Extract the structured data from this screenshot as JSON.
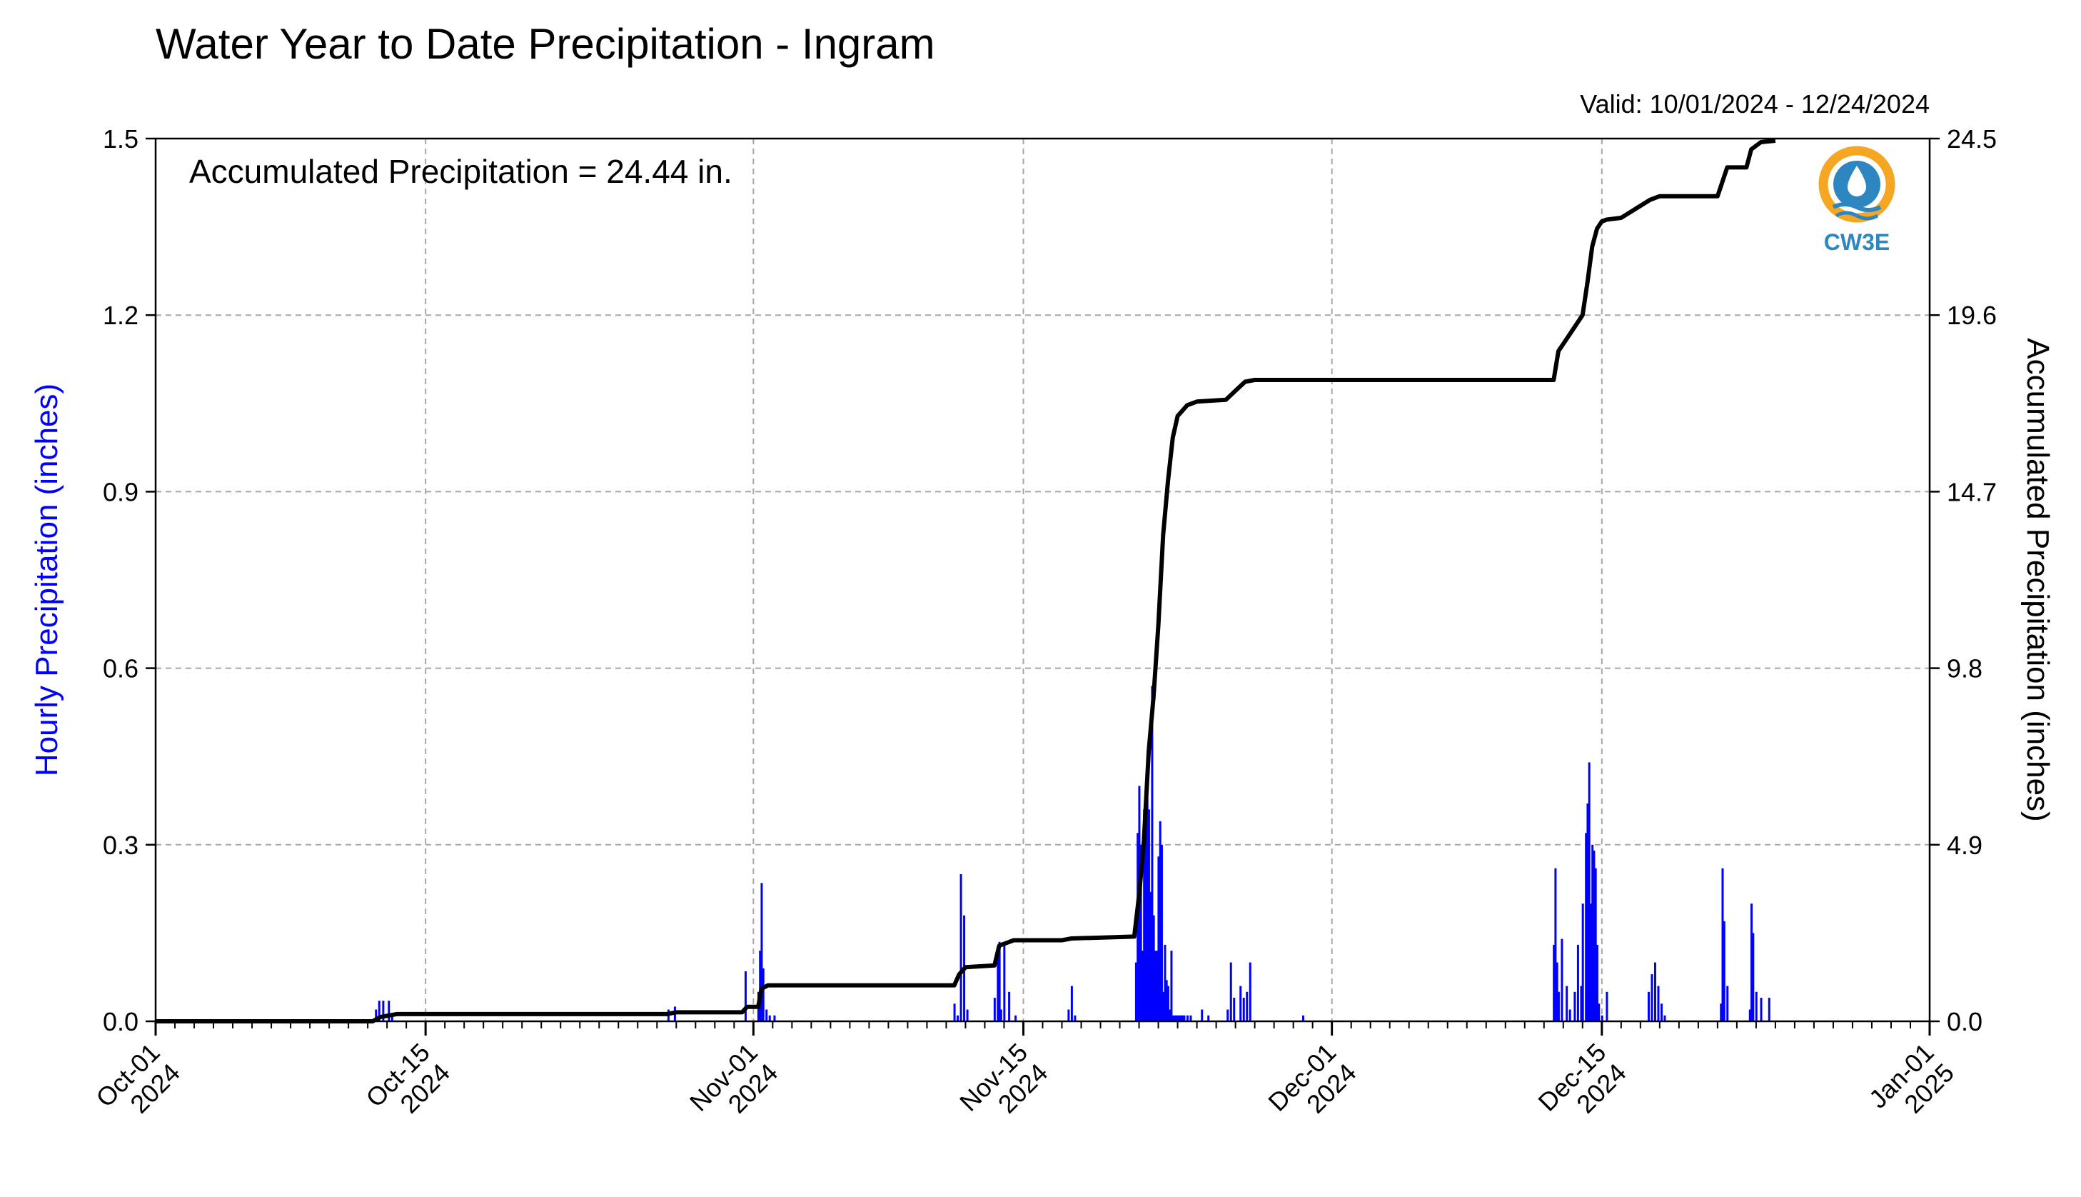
{
  "colors": {
    "bars": "#0000ff",
    "cumulative_line": "#000000",
    "grid": "#a6a6a6",
    "left_axis_label": "#0000ff",
    "logo_orange": "#f5a623",
    "logo_blue": "#2e86c1"
  },
  "logo": {
    "text": "CW3E",
    "icon": "water-drop-sun-logo"
  },
  "chart_data": {
    "type": "bar",
    "title": "Water Year to Date Precipitation - Ingram",
    "subtitle": "Valid: 10/01/2024 - 12/24/2024",
    "annotation": "Accumulated Precipitation = 24.44 in.",
    "ylabel": "Hourly Precipitation (inches)",
    "y2label": "Accumulated Precipitation (inches)",
    "grid": true,
    "x_axis": {
      "type": "date",
      "range": [
        "2024-10-01",
        "2025-01-01"
      ],
      "major_ticks": [
        {
          "date": "2024-10-01",
          "label": [
            "Oct-01",
            "2024"
          ]
        },
        {
          "date": "2024-10-15",
          "label": [
            "Oct-15",
            "2024"
          ]
        },
        {
          "date": "2024-11-01",
          "label": [
            "Nov-01",
            "2024"
          ]
        },
        {
          "date": "2024-11-15",
          "label": [
            "Nov-15",
            "2024"
          ]
        },
        {
          "date": "2024-12-01",
          "label": [
            "Dec-01",
            "2024"
          ]
        },
        {
          "date": "2024-12-15",
          "label": [
            "Dec-15",
            "2024"
          ]
        },
        {
          "date": "2025-01-01",
          "label": [
            "Jan-01",
            "2025"
          ]
        }
      ]
    },
    "y_axis": {
      "range": [
        0,
        1.5
      ],
      "ticks": [
        "0.0",
        "0.3",
        "0.6",
        "0.9",
        "1.2",
        "1.5"
      ]
    },
    "y2_axis": {
      "range": [
        0,
        24.5
      ],
      "ticks": [
        "0.0",
        "4.9",
        "9.8",
        "14.7",
        "19.6",
        "24.5"
      ]
    },
    "series": [
      {
        "type": "bar",
        "axis": "left",
        "x": [
          "2024-10-12T10:00",
          "2024-10-12T14:00",
          "2024-10-12T19:00",
          "2024-10-13T02:00",
          "2024-10-13T06:00",
          "2024-10-27T14:00",
          "2024-10-27T22:00",
          "2024-10-31T14:00",
          "2024-11-01T06:00",
          "2024-11-01T08:00",
          "2024-11-01T10:00",
          "2024-11-01T12:00",
          "2024-11-01T16:00",
          "2024-11-01T20:00",
          "2024-11-02T02:00",
          "2024-11-11T10:00",
          "2024-11-11T14:00",
          "2024-11-11T18:00",
          "2024-11-11T22:00",
          "2024-11-12T02:00",
          "2024-11-13T12:00",
          "2024-11-13T16:00",
          "2024-11-13T18:00",
          "2024-11-13T20:00",
          "2024-11-14T00:00",
          "2024-11-14T06:00",
          "2024-11-14T14:00",
          "2024-11-17T08:00",
          "2024-11-17T12:00",
          "2024-11-17T16:00",
          "2024-11-20T20:00",
          "2024-11-20T22:00",
          "2024-11-21T00:00",
          "2024-11-21T02:00",
          "2024-11-21T04:00",
          "2024-11-21T06:00",
          "2024-11-21T08:00",
          "2024-11-21T10:00",
          "2024-11-21T12:00",
          "2024-11-21T14:00",
          "2024-11-21T16:00",
          "2024-11-21T18:00",
          "2024-11-21T20:00",
          "2024-11-21T22:00",
          "2024-11-22T00:00",
          "2024-11-22T02:00",
          "2024-11-22T04:00",
          "2024-11-22T06:00",
          "2024-11-22T08:00",
          "2024-11-22T10:00",
          "2024-11-22T12:00",
          "2024-11-22T14:00",
          "2024-11-22T16:00",
          "2024-11-22T18:00",
          "2024-11-22T20:00",
          "2024-11-22T22:00",
          "2024-11-23T00:00",
          "2024-11-23T02:00",
          "2024-11-23T04:00",
          "2024-11-23T06:00",
          "2024-11-23T08:00",
          "2024-11-23T12:00",
          "2024-11-23T16:00",
          "2024-11-24T06:00",
          "2024-11-24T14:00",
          "2024-11-25T14:00",
          "2024-11-25T18:00",
          "2024-11-25T22:00",
          "2024-11-26T06:00",
          "2024-11-26T10:00",
          "2024-11-26T14:00",
          "2024-11-26T18:00",
          "2024-11-29T12:00",
          "2024-12-12T12:00",
          "2024-12-12T14:00",
          "2024-12-12T16:00",
          "2024-12-12T18:00",
          "2024-12-12T22:00",
          "2024-12-13T04:00",
          "2024-12-13T08:00",
          "2024-12-13T14:00",
          "2024-12-13T18:00",
          "2024-12-13T22:00",
          "2024-12-14T00:00",
          "2024-12-14T04:00",
          "2024-12-14T06:00",
          "2024-12-14T08:00",
          "2024-12-14T10:00",
          "2024-12-14T12:00",
          "2024-12-14T14:00",
          "2024-12-14T16:00",
          "2024-12-14T18:00",
          "2024-12-14T20:00",
          "2024-12-15T00:00",
          "2024-12-15T06:00",
          "2024-12-17T10:00",
          "2024-12-17T14:00",
          "2024-12-17T18:00",
          "2024-12-17T22:00",
          "2024-12-18T02:00",
          "2024-12-18T06:00",
          "2024-12-21T04:00",
          "2024-12-21T06:00",
          "2024-12-21T08:00",
          "2024-12-21T12:00",
          "2024-12-22T16:00",
          "2024-12-22T18:00",
          "2024-12-22T20:00",
          "2024-12-23T00:00",
          "2024-12-23T06:00",
          "2024-12-23T16:00"
        ],
        "values": [
          0.02,
          0.035,
          0.035,
          0.035,
          0.01,
          0.02,
          0.025,
          0.085,
          0.05,
          0.12,
          0.235,
          0.09,
          0.02,
          0.01,
          0.01,
          0.03,
          0.01,
          0.25,
          0.18,
          0.02,
          0.04,
          0.12,
          0.135,
          0.02,
          0.13,
          0.05,
          0.01,
          0.02,
          0.06,
          0.01,
          0.1,
          0.32,
          0.4,
          0.3,
          0.12,
          0.36,
          0.32,
          0.38,
          0.36,
          0.22,
          0.57,
          0.18,
          0.12,
          0.12,
          0.28,
          0.34,
          0.3,
          0.05,
          0.13,
          0.07,
          0.06,
          0.02,
          0.12,
          0.01,
          0.01,
          0.01,
          0.01,
          0.01,
          0.01,
          0.01,
          0.01,
          0.01,
          0.01,
          0.02,
          0.01,
          0.02,
          0.1,
          0.04,
          0.06,
          0.04,
          0.05,
          0.1,
          0.01,
          0.13,
          0.26,
          0.1,
          0.05,
          0.14,
          0.06,
          0.02,
          0.05,
          0.13,
          0.06,
          0.2,
          0.32,
          0.37,
          0.44,
          0.2,
          0.3,
          0.29,
          0.26,
          0.13,
          0.03,
          0.01,
          0.05,
          0.05,
          0.08,
          0.1,
          0.06,
          0.03,
          0.01,
          0.03,
          0.26,
          0.17,
          0.06,
          0.02,
          0.2,
          0.15,
          0.05,
          0.04,
          0.04
        ]
      },
      {
        "type": "line",
        "axis": "right",
        "x": [
          "2024-10-01T00:00",
          "2024-10-12T06:00",
          "2024-10-12T16:00",
          "2024-10-13T12:00",
          "2024-10-27T12:00",
          "2024-10-28T00:00",
          "2024-10-31T10:00",
          "2024-10-31T16:00",
          "2024-11-01T06:00",
          "2024-11-01T10:00",
          "2024-11-01T18:00",
          "2024-11-11T10:00",
          "2024-11-11T16:00",
          "2024-11-12T00:00",
          "2024-11-13T12:00",
          "2024-11-13T18:00",
          "2024-11-14T00:00",
          "2024-11-14T12:00",
          "2024-11-17T00:00",
          "2024-11-17T12:00",
          "2024-11-20T18:00",
          "2024-11-21T00:00",
          "2024-11-21T06:00",
          "2024-11-21T12:00",
          "2024-11-21T18:00",
          "2024-11-22T00:00",
          "2024-11-22T06:00",
          "2024-11-22T12:00",
          "2024-11-22T18:00",
          "2024-11-23T00:00",
          "2024-11-23T12:00",
          "2024-11-24T00:00",
          "2024-11-25T12:00",
          "2024-11-26T00:00",
          "2024-11-26T12:00",
          "2024-11-27T00:00",
          "2024-12-12T12:00",
          "2024-12-12T18:00",
          "2024-12-13T00:00",
          "2024-12-13T12:00",
          "2024-12-14T00:00",
          "2024-12-14T06:00",
          "2024-12-14T12:00",
          "2024-12-14T18:00",
          "2024-12-15T00:00",
          "2024-12-15T06:00",
          "2024-12-16T00:00",
          "2024-12-17T12:00",
          "2024-12-18T00:00",
          "2024-12-21T00:00",
          "2024-12-21T12:00",
          "2024-12-22T12:00",
          "2024-12-22T18:00",
          "2024-12-23T06:00",
          "2024-12-24T00:00"
        ],
        "values": [
          0.0,
          0.0,
          0.12,
          0.2,
          0.2,
          0.25,
          0.25,
          0.4,
          0.4,
          0.9,
          1.0,
          1.0,
          1.3,
          1.5,
          1.55,
          2.1,
          2.15,
          2.25,
          2.25,
          2.3,
          2.35,
          3.5,
          5.0,
          7.5,
          9.0,
          11.0,
          13.5,
          15.0,
          16.2,
          16.8,
          17.1,
          17.2,
          17.25,
          17.5,
          17.75,
          17.8,
          17.8,
          18.6,
          18.8,
          19.2,
          19.6,
          20.5,
          21.5,
          22.0,
          22.2,
          22.25,
          22.3,
          22.8,
          22.9,
          22.9,
          23.7,
          23.7,
          24.2,
          24.4,
          24.44
        ]
      }
    ]
  }
}
